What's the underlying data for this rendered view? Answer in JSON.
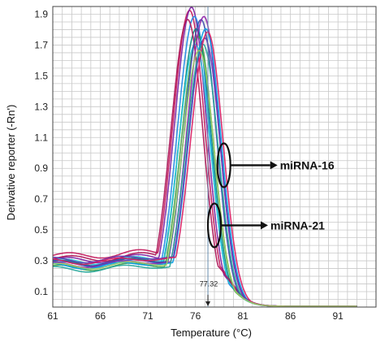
{
  "chart_data": {
    "type": "line",
    "xlabel": "Temperature (°C)",
    "ylabel": "Derivative reporter (-Rn')",
    "xlim": [
      61,
      95
    ],
    "ylim": [
      0,
      1.95
    ],
    "xticks": [
      61,
      66,
      71,
      76,
      81,
      86,
      91
    ],
    "yticks": [
      0.1,
      0.3,
      0.5,
      0.7,
      0.9,
      1.1,
      1.3,
      1.5,
      1.7,
      1.9
    ],
    "grid": true,
    "marker_line": {
      "x": 77.32,
      "label": "77.32"
    },
    "annotations": [
      {
        "text": "miRNA-16",
        "x": 79.0,
        "y": 0.92
      },
      {
        "text": "miRNA-21",
        "x": 78.0,
        "y": 0.53
      }
    ],
    "series": [
      {
        "peak_x": 75.4,
        "peak_y": 1.92,
        "baseline": 0.33,
        "color": "#c2185b"
      },
      {
        "peak_x": 75.6,
        "peak_y": 1.94,
        "baseline": 0.3,
        "color": "#7b1fa2"
      },
      {
        "peak_x": 75.9,
        "peak_y": 1.88,
        "baseline": 0.27,
        "color": "#1e88e5"
      },
      {
        "peak_x": 76.1,
        "peak_y": 1.8,
        "baseline": 0.28,
        "color": "#00897b"
      },
      {
        "peak_x": 76.3,
        "peak_y": 1.75,
        "baseline": 0.25,
        "color": "#43a047"
      },
      {
        "peak_x": 76.0,
        "peak_y": 1.7,
        "baseline": 0.29,
        "color": "#26c6da"
      },
      {
        "peak_x": 75.2,
        "peak_y": 1.86,
        "baseline": 0.31,
        "color": "#ad1457"
      },
      {
        "peak_x": 76.6,
        "peak_y": 1.86,
        "baseline": 0.28,
        "color": "#3949ab"
      },
      {
        "peak_x": 76.9,
        "peak_y": 1.88,
        "baseline": 0.27,
        "color": "#8e24aa"
      },
      {
        "peak_x": 77.1,
        "peak_y": 1.8,
        "baseline": 0.26,
        "color": "#039be5"
      },
      {
        "peak_x": 77.0,
        "peak_y": 1.74,
        "baseline": 0.3,
        "color": "#5e35b1"
      },
      {
        "peak_x": 76.8,
        "peak_y": 1.7,
        "baseline": 0.24,
        "color": "#26a69a"
      },
      {
        "peak_x": 77.3,
        "peak_y": 1.78,
        "baseline": 0.29,
        "color": "#d81b60"
      },
      {
        "peak_x": 76.4,
        "peak_y": 1.66,
        "baseline": 0.26,
        "color": "#9ccc65"
      }
    ]
  }
}
